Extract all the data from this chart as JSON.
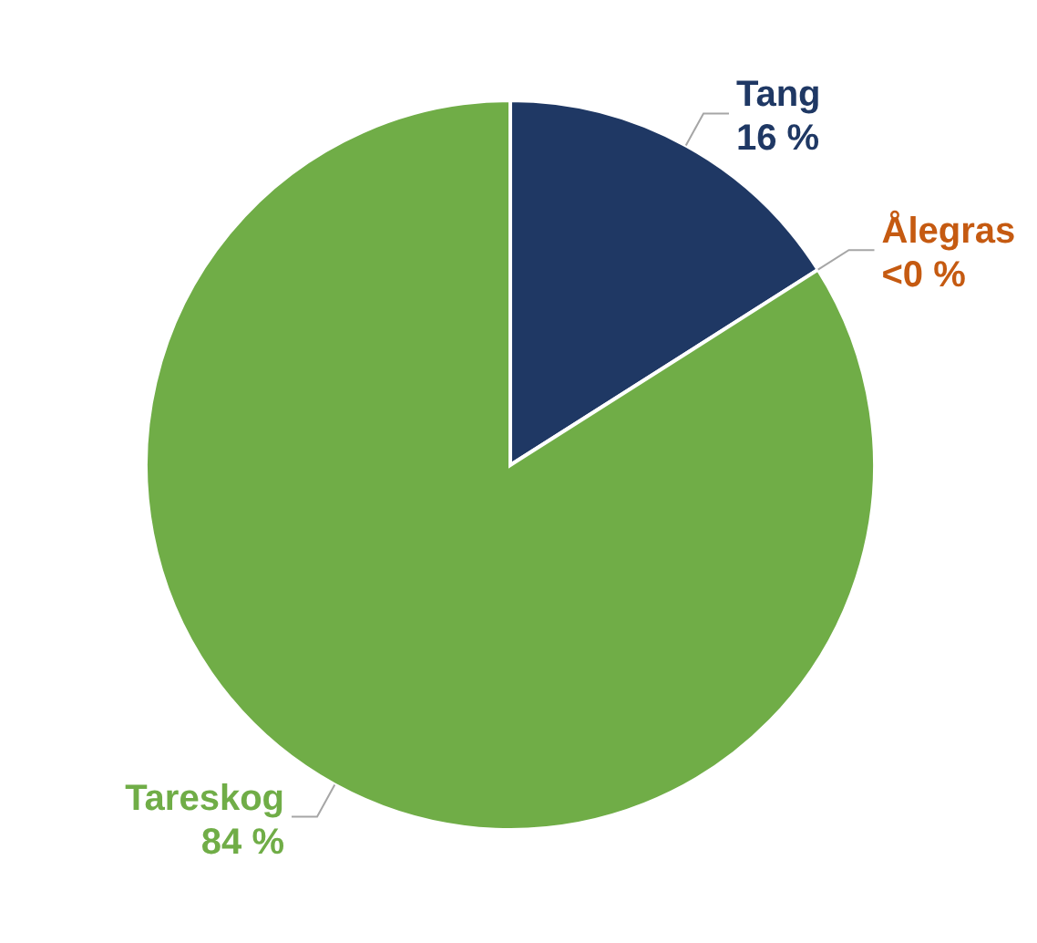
{
  "chart_data": {
    "type": "pie",
    "categories": [
      "Tang",
      "Ålegras",
      "Tareskog"
    ],
    "values": [
      16,
      0,
      84
    ],
    "colors": [
      "#1f3864",
      "#c55a11",
      "#70ad47"
    ],
    "value_labels": [
      "16 %",
      "<0 %",
      "84 %"
    ],
    "legend": false
  }
}
